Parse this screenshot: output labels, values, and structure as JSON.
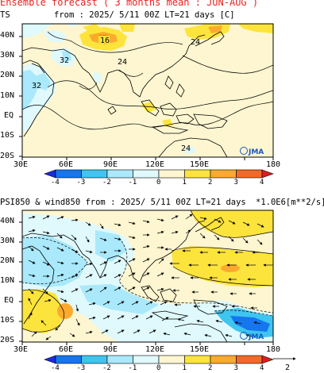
{
  "header": {
    "title": "Ensemble forecast ( 3 months mean : JUN-AUG )"
  },
  "panels": [
    {
      "variable": "TS",
      "title": "from : 2025/ 5/11 00Z LT=21 days [C]",
      "lon_labels": [
        "30E",
        "60E",
        "90E",
        "120E",
        "150E",
        "180"
      ],
      "lat_labels": [
        "40N",
        "30N",
        "20N",
        "10N",
        "EQ",
        "10S",
        "20S"
      ],
      "contour_labels": [
        "16",
        "24",
        "24",
        "32",
        "32",
        "24"
      ],
      "colorbar": {
        "ticks": [
          "-4",
          "-3",
          "-2",
          "-1",
          "0",
          "1",
          "2",
          "3",
          "4"
        ],
        "colors": [
          "#1a2cdc",
          "#1576ee",
          "#3ec5f0",
          "#a9e9fb",
          "#dff9fc",
          "#fdf6d0",
          "#fde43c",
          "#fcaa2e",
          "#f26a26",
          "#dc1d1f"
        ]
      },
      "logo": "JMA"
    },
    {
      "variable": "PSI850 & wind850",
      "title": "PSI850 & wind850 from : 2025/ 5/11 00Z LT=21 days",
      "unit": "*1.0E6[m**2/s]",
      "lon_labels": [
        "30E",
        "60E",
        "90E",
        "120E",
        "150E",
        "180"
      ],
      "lat_labels": [
        "40N",
        "30N",
        "20N",
        "10N",
        "EQ",
        "10S",
        "20S"
      ],
      "colorbar": {
        "ticks": [
          "-4",
          "-3",
          "-2",
          "-1",
          "0",
          "1",
          "2",
          "3",
          "4"
        ],
        "colors": [
          "#1a2cdc",
          "#1576ee",
          "#3ec5f0",
          "#a9e9fb",
          "#dff9fc",
          "#fdf6d0",
          "#fde43c",
          "#fcaa2e",
          "#f26a26",
          "#dc1d1f"
        ]
      },
      "vector_scale": "2",
      "logo": "JMA"
    }
  ]
}
